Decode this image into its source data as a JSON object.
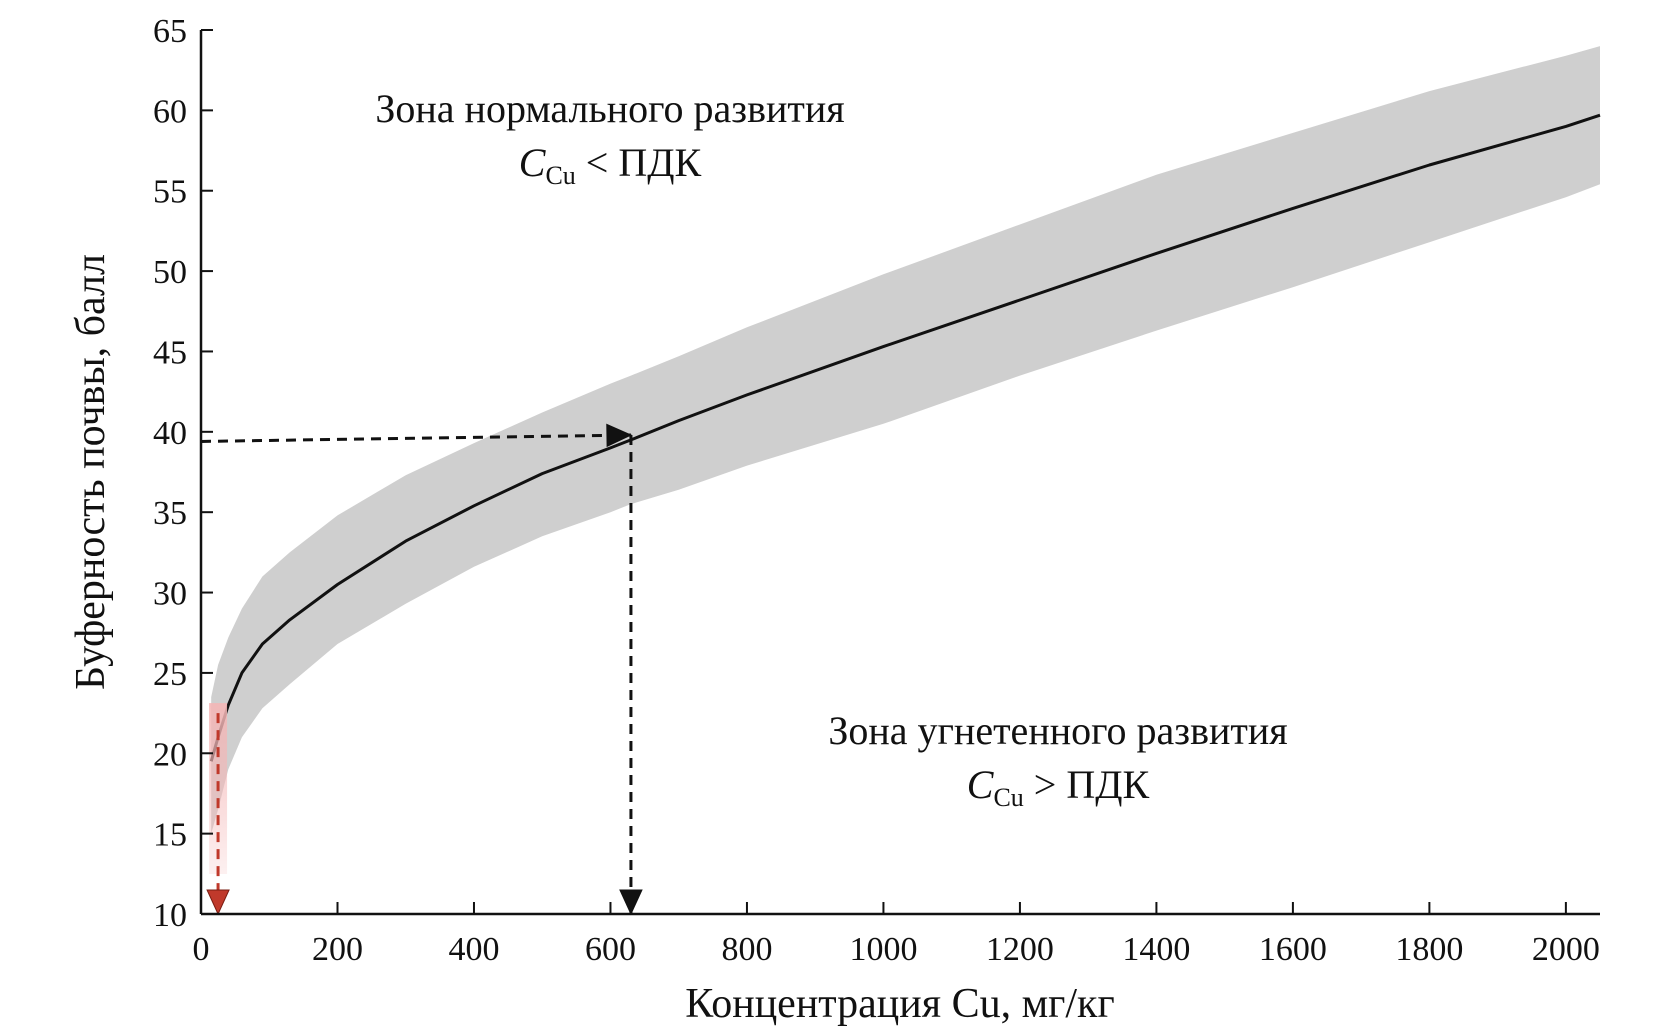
{
  "chart_data": {
    "type": "line",
    "xlabel": "Концентрация Cu, мг/кг",
    "ylabel": "Буферность почвы, балл",
    "xlim": [
      0,
      2050
    ],
    "ylim": [
      10,
      65
    ],
    "x_ticks": [
      0,
      200,
      400,
      600,
      800,
      1000,
      1200,
      1400,
      1600,
      1800,
      2000
    ],
    "y_ticks": [
      10,
      15,
      20,
      25,
      30,
      35,
      40,
      45,
      50,
      55,
      60,
      65
    ],
    "grid": false,
    "series": [
      {
        "kind": "line",
        "color": "#111111",
        "x": [
          15,
          25,
          40,
          60,
          90,
          130,
          200,
          300,
          400,
          500,
          600,
          630,
          700,
          800,
          1000,
          1200,
          1400,
          1600,
          1800,
          2000,
          2050
        ],
        "y": [
          19.5,
          21.0,
          23.0,
          25.0,
          26.8,
          28.3,
          30.5,
          33.2,
          35.4,
          37.4,
          39.0,
          39.5,
          40.7,
          42.3,
          45.3,
          48.2,
          51.1,
          53.9,
          56.6,
          59.0,
          59.7
        ]
      },
      {
        "kind": "band",
        "color": "#cfcfcf",
        "x": [
          15,
          25,
          40,
          60,
          90,
          130,
          200,
          300,
          400,
          500,
          600,
          630,
          700,
          800,
          1000,
          1200,
          1400,
          1600,
          1800,
          2000,
          2050
        ],
        "lower": [
          15.0,
          16.5,
          19.0,
          21.0,
          22.8,
          24.3,
          26.8,
          29.3,
          31.6,
          33.5,
          35.0,
          35.5,
          36.4,
          37.9,
          40.5,
          43.5,
          46.3,
          49.0,
          51.8,
          54.6,
          55.4
        ],
        "upper": [
          23.5,
          25.5,
          27.2,
          29.0,
          31.0,
          32.5,
          34.8,
          37.3,
          39.3,
          41.2,
          43.0,
          43.5,
          44.7,
          46.5,
          49.8,
          52.9,
          56.0,
          58.6,
          61.2,
          63.4,
          64.0
        ]
      }
    ],
    "annotations": [
      {
        "kind": "dashed-arrow",
        "color": "#111111",
        "from": [
          0,
          39.4
        ],
        "to": [
          630,
          39.8
        ]
      },
      {
        "kind": "dashed-arrow",
        "color": "#111111",
        "from": [
          630,
          39.8
        ],
        "to": [
          630,
          10
        ]
      },
      {
        "kind": "dashed-arrow",
        "color": "#c0392b",
        "from": [
          25,
          22.5
        ],
        "to": [
          25,
          10
        ]
      }
    ],
    "zones": [
      {
        "title": "Зона нормального развития",
        "symbol": "C",
        "subscript": "Cu",
        "relation": "< ПДК"
      },
      {
        "title": "Зона угнетенного развития",
        "symbol": "C",
        "subscript": "Cu",
        "relation": "> ПДК"
      }
    ]
  }
}
